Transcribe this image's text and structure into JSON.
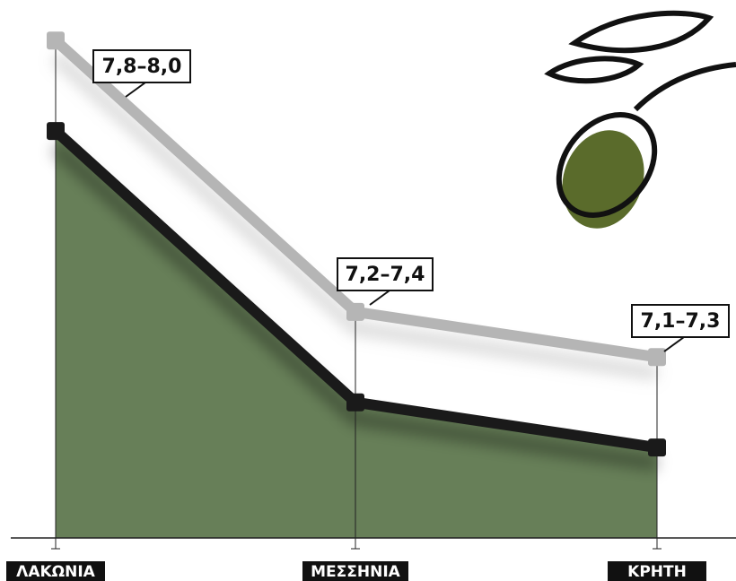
{
  "chart_data": {
    "type": "range-line",
    "categories": [
      "ΛΑΚΩΝΙΑ",
      "ΜΕΣΣΗΝΙΑ",
      "ΚΡΗΤΗ"
    ],
    "series": [
      {
        "color": "#b5b5b5",
        "values": [
          8.0,
          7.4,
          7.3
        ]
      },
      {
        "color": "#1a1a1a",
        "values": [
          7.8,
          7.2,
          7.1
        ]
      }
    ],
    "value_labels": [
      "7,8–8,0",
      "7,2–7,4",
      "7,1–7,3"
    ],
    "area_color": "#677f58",
    "ylim": [
      6.9,
      8.05
    ]
  }
}
